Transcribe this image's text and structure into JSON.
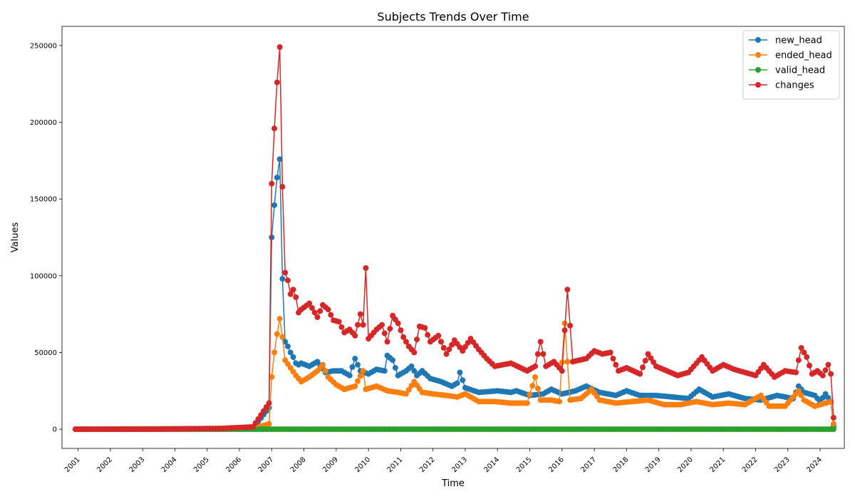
{
  "chart_data": {
    "type": "line",
    "title": "Subjects Trends Over Time",
    "xlabel": "Time",
    "ylabel": "Values",
    "x_ticks": [
      "2001",
      "2002",
      "2003",
      "2004",
      "2005",
      "2006",
      "2007",
      "2008",
      "2009",
      "2010",
      "2011",
      "2012",
      "2013",
      "2014",
      "2015",
      "2016",
      "2017",
      "2018",
      "2019",
      "2020",
      "2021",
      "2022",
      "2023",
      "2024"
    ],
    "y_ticks": [
      0,
      50000,
      100000,
      150000,
      200000,
      250000
    ],
    "xlim": [
      "2000-07",
      "2024-10"
    ],
    "ylim": [
      -12500,
      262500
    ],
    "legend": "top-right",
    "grid": false,
    "series": [
      {
        "name": "new_head",
        "color": "#1f77b4",
        "points": [
          [
            "2000-12",
            0
          ],
          [
            "2006-06",
            500
          ],
          [
            "2006-12",
            14000
          ],
          [
            "2007-01",
            125000
          ],
          [
            "2007-02",
            146000
          ],
          [
            "2007-03",
            164000
          ],
          [
            "2007-04",
            176000
          ],
          [
            "2007-05",
            98000
          ],
          [
            "2007-06",
            57000
          ],
          [
            "2007-07",
            54000
          ],
          [
            "2007-08",
            50000
          ],
          [
            "2007-09",
            47000
          ],
          [
            "2007-10",
            43000
          ],
          [
            "2007-11",
            42000
          ],
          [
            "2007-12",
            43000
          ],
          [
            "2008-03",
            41000
          ],
          [
            "2008-06",
            44000
          ],
          [
            "2008-09",
            37000
          ],
          [
            "2008-12",
            38000
          ],
          [
            "2009-03",
            38000
          ],
          [
            "2009-06",
            35000
          ],
          [
            "2009-08",
            46000
          ],
          [
            "2009-10",
            38000
          ],
          [
            "2010-01",
            36000
          ],
          [
            "2010-04",
            39000
          ],
          [
            "2010-07",
            38000
          ],
          [
            "2010-08",
            48000
          ],
          [
            "2010-10",
            45000
          ],
          [
            "2010-12",
            35000
          ],
          [
            "2011-03",
            38000
          ],
          [
            "2011-05",
            41000
          ],
          [
            "2011-07",
            35000
          ],
          [
            "2011-09",
            38000
          ],
          [
            "2011-12",
            33000
          ],
          [
            "2012-04",
            31000
          ],
          [
            "2012-08",
            28000
          ],
          [
            "2012-10",
            30000
          ],
          [
            "2012-11",
            37000
          ],
          [
            "2013-01",
            27000
          ],
          [
            "2013-06",
            24000
          ],
          [
            "2014-01",
            25000
          ],
          [
            "2014-06",
            24000
          ],
          [
            "2014-08",
            25000
          ],
          [
            "2015-01",
            22000
          ],
          [
            "2015-06",
            23000
          ],
          [
            "2015-09",
            26000
          ],
          [
            "2016-01",
            23000
          ],
          [
            "2016-06",
            25000
          ],
          [
            "2016-10",
            28000
          ],
          [
            "2017-03",
            24000
          ],
          [
            "2017-09",
            22000
          ],
          [
            "2018-01",
            25000
          ],
          [
            "2018-06",
            22000
          ],
          [
            "2018-12",
            22000
          ],
          [
            "2019-06",
            21000
          ],
          [
            "2019-12",
            20000
          ],
          [
            "2020-04",
            26000
          ],
          [
            "2020-09",
            21000
          ],
          [
            "2021-03",
            23000
          ],
          [
            "2021-09",
            20000
          ],
          [
            "2022-03",
            19000
          ],
          [
            "2022-09",
            22000
          ],
          [
            "2023-03",
            20000
          ],
          [
            "2023-05",
            28000
          ],
          [
            "2023-07",
            24000
          ],
          [
            "2023-11",
            22000
          ],
          [
            "2024-01",
            18000
          ],
          [
            "2024-03",
            23000
          ],
          [
            "2024-05",
            18000
          ],
          [
            "2024-06",
            2000
          ]
        ]
      },
      {
        "name": "ended_head",
        "color": "#ff7f0e",
        "points": [
          [
            "2000-12",
            0
          ],
          [
            "2006-06",
            300
          ],
          [
            "2006-12",
            3500
          ],
          [
            "2007-01",
            34000
          ],
          [
            "2007-02",
            50000
          ],
          [
            "2007-03",
            62000
          ],
          [
            "2007-04",
            72000
          ],
          [
            "2007-05",
            60000
          ],
          [
            "2007-06",
            45000
          ],
          [
            "2007-08",
            40000
          ],
          [
            "2007-10",
            35000
          ],
          [
            "2007-12",
            31000
          ],
          [
            "2008-03",
            34000
          ],
          [
            "2008-06",
            38000
          ],
          [
            "2008-08",
            42000
          ],
          [
            "2008-10",
            34000
          ],
          [
            "2009-01",
            29000
          ],
          [
            "2009-04",
            26000
          ],
          [
            "2009-08",
            28000
          ],
          [
            "2009-11",
            38000
          ],
          [
            "2009-12",
            26000
          ],
          [
            "2010-04",
            28000
          ],
          [
            "2010-08",
            25000
          ],
          [
            "2010-12",
            24000
          ],
          [
            "2011-03",
            23000
          ],
          [
            "2011-06",
            31000
          ],
          [
            "2011-09",
            24000
          ],
          [
            "2012-01",
            23000
          ],
          [
            "2012-06",
            22000
          ],
          [
            "2012-10",
            21000
          ],
          [
            "2013-01",
            23000
          ],
          [
            "2013-06",
            18000
          ],
          [
            "2013-12",
            18000
          ],
          [
            "2014-06",
            17000
          ],
          [
            "2014-12",
            17000
          ],
          [
            "2015-03",
            34000
          ],
          [
            "2015-05",
            19000
          ],
          [
            "2015-09",
            19000
          ],
          [
            "2015-12",
            18000
          ],
          [
            "2016-02",
            69000
          ],
          [
            "2016-04",
            19000
          ],
          [
            "2016-08",
            20000
          ],
          [
            "2016-12",
            26000
          ],
          [
            "2017-03",
            19000
          ],
          [
            "2017-09",
            17000
          ],
          [
            "2018-03",
            18000
          ],
          [
            "2018-09",
            19000
          ],
          [
            "2019-03",
            16000
          ],
          [
            "2019-09",
            16000
          ],
          [
            "2020-03",
            18000
          ],
          [
            "2020-09",
            16000
          ],
          [
            "2021-03",
            17000
          ],
          [
            "2021-09",
            16000
          ],
          [
            "2022-03",
            22000
          ],
          [
            "2022-06",
            15000
          ],
          [
            "2022-12",
            15000
          ],
          [
            "2023-05",
            25000
          ],
          [
            "2023-07",
            19000
          ],
          [
            "2023-11",
            15000
          ],
          [
            "2024-03",
            17000
          ],
          [
            "2024-05",
            18000
          ],
          [
            "2024-06",
            3500
          ]
        ]
      },
      {
        "name": "valid_head",
        "color": "#2ca02c",
        "points": [
          [
            "2000-12",
            0
          ],
          [
            "2024-06",
            0
          ]
        ]
      },
      {
        "name": "changes",
        "color": "#d62728",
        "points": [
          [
            "2000-12",
            0
          ],
          [
            "2003-06",
            0
          ],
          [
            "2005-06",
            500
          ],
          [
            "2006-06",
            1500
          ],
          [
            "2006-12",
            17000
          ],
          [
            "2007-01",
            160000
          ],
          [
            "2007-02",
            196000
          ],
          [
            "2007-03",
            226000
          ],
          [
            "2007-04",
            249000
          ],
          [
            "2007-05",
            158000
          ],
          [
            "2007-06",
            102000
          ],
          [
            "2007-07",
            97000
          ],
          [
            "2007-08",
            88000
          ],
          [
            "2007-09",
            91000
          ],
          [
            "2007-10",
            86000
          ],
          [
            "2007-11",
            76000
          ],
          [
            "2007-12",
            78000
          ],
          [
            "2008-03",
            82000
          ],
          [
            "2008-06",
            73000
          ],
          [
            "2008-08",
            81000
          ],
          [
            "2008-10",
            78000
          ],
          [
            "2008-12",
            71000
          ],
          [
            "2009-02",
            70000
          ],
          [
            "2009-04",
            63000
          ],
          [
            "2009-06",
            65000
          ],
          [
            "2009-08",
            61000
          ],
          [
            "2009-10",
            75000
          ],
          [
            "2009-11",
            68000
          ],
          [
            "2009-12",
            105000
          ],
          [
            "2010-01",
            59000
          ],
          [
            "2010-04",
            65000
          ],
          [
            "2010-06",
            68000
          ],
          [
            "2010-08",
            57000
          ],
          [
            "2010-10",
            74000
          ],
          [
            "2010-12",
            69000
          ],
          [
            "2011-02",
            60000
          ],
          [
            "2011-04",
            54000
          ],
          [
            "2011-06",
            50000
          ],
          [
            "2011-08",
            67000
          ],
          [
            "2011-10",
            66000
          ],
          [
            "2011-12",
            57000
          ],
          [
            "2012-03",
            61000
          ],
          [
            "2012-06",
            49000
          ],
          [
            "2012-09",
            58000
          ],
          [
            "2012-12",
            51000
          ],
          [
            "2013-03",
            59000
          ],
          [
            "2013-06",
            52000
          ],
          [
            "2013-09",
            46000
          ],
          [
            "2013-12",
            41000
          ],
          [
            "2014-06",
            43000
          ],
          [
            "2014-12",
            38000
          ],
          [
            "2015-03",
            41000
          ],
          [
            "2015-05",
            57000
          ],
          [
            "2015-07",
            41000
          ],
          [
            "2015-10",
            44000
          ],
          [
            "2016-01",
            38000
          ],
          [
            "2016-03",
            91000
          ],
          [
            "2016-05",
            44000
          ],
          [
            "2016-10",
            46000
          ],
          [
            "2017-01",
            51000
          ],
          [
            "2017-04",
            49000
          ],
          [
            "2017-07",
            50000
          ],
          [
            "2017-10",
            38000
          ],
          [
            "2018-01",
            40000
          ],
          [
            "2018-06",
            36000
          ],
          [
            "2018-09",
            49000
          ],
          [
            "2018-12",
            41000
          ],
          [
            "2019-04",
            38000
          ],
          [
            "2019-08",
            35000
          ],
          [
            "2019-12",
            37000
          ],
          [
            "2020-03",
            43000
          ],
          [
            "2020-05",
            47000
          ],
          [
            "2020-09",
            38000
          ],
          [
            "2021-01",
            42000
          ],
          [
            "2021-05",
            39000
          ],
          [
            "2021-09",
            37000
          ],
          [
            "2022-01",
            35000
          ],
          [
            "2022-04",
            42000
          ],
          [
            "2022-08",
            34000
          ],
          [
            "2022-12",
            38000
          ],
          [
            "2023-04",
            37000
          ],
          [
            "2023-06",
            53000
          ],
          [
            "2023-08",
            47000
          ],
          [
            "2023-10",
            36000
          ],
          [
            "2023-12",
            38000
          ],
          [
            "2024-02",
            35000
          ],
          [
            "2024-04",
            42000
          ],
          [
            "2024-05",
            36000
          ],
          [
            "2024-06",
            7500
          ]
        ]
      }
    ]
  }
}
